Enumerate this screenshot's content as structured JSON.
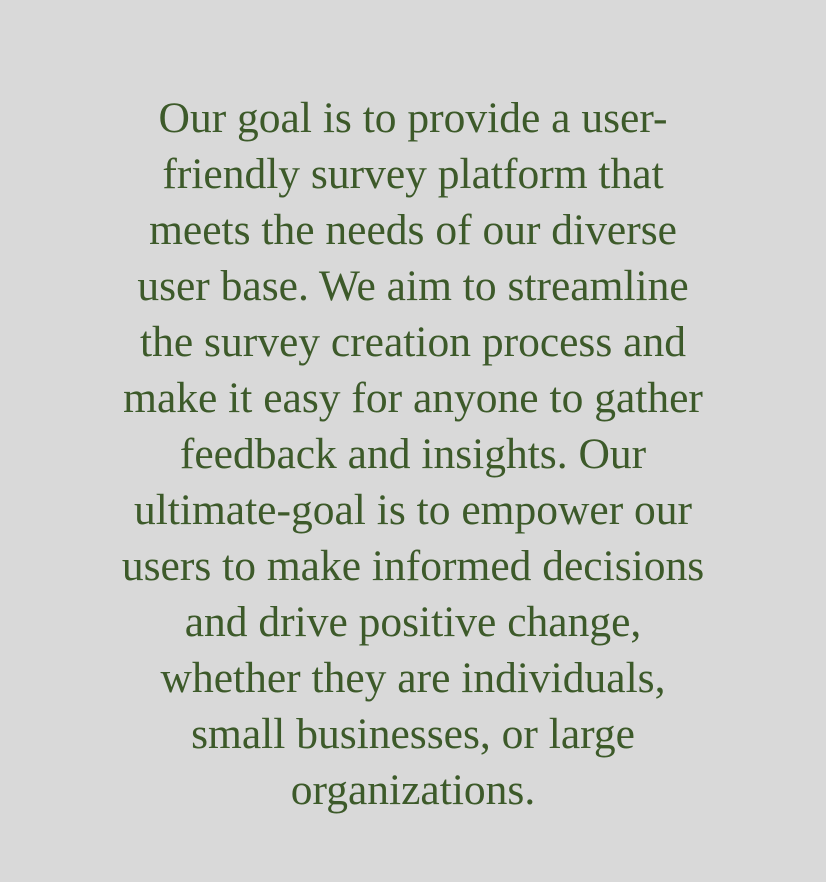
{
  "mission": {
    "lines": [
      "Our goal is to provide a user-",
      "friendly survey platform that",
      "meets the needs of our diverse",
      "user base. We aim to streamline",
      "the survey creation process and",
      "make it easy for anyone to gather",
      "feedback and insights. Our",
      "ultimate-goal is to empower our",
      "users to make informed decisions",
      "and drive positive change,",
      "whether they are individuals,",
      "small businesses, or large",
      "organizations."
    ]
  },
  "colors": {
    "background": "#d9d9d9",
    "text": "#3d5a2a"
  }
}
